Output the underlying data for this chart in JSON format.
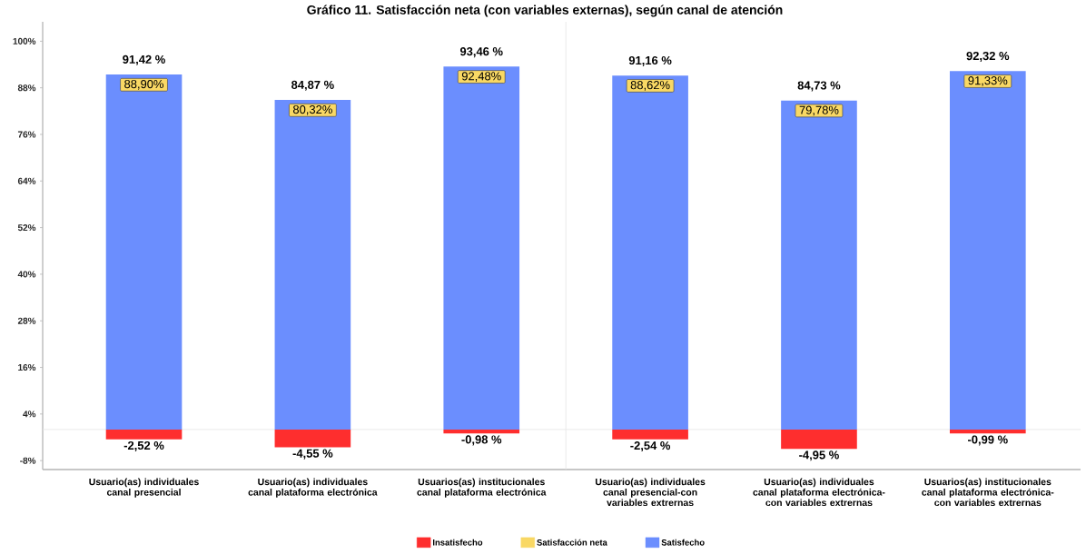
{
  "chart_data": {
    "type": "bar",
    "title": "Gráfico 11. Satisfacción neta (con variables externas), según canal de atención",
    "categories": [
      "Usuario(as) individuales canal presencial",
      "Usuario(as) individuales canal plataforma electrónica",
      "Usuarios(as) institucionales canal plataforma electrónica",
      "Usuario(as) individuales canal presencial-con variables extrernas",
      "Usuario(as) individuales canal plataforma electrónica-con variables extrernas",
      "Usuarios(as) institucionales canal plataforma electrónica-con variables extrernas"
    ],
    "series": [
      {
        "name": "Insatisfecho",
        "color": "#fe2e2e",
        "values": [
          -2.52,
          -4.55,
          -0.98,
          -2.54,
          -4.95,
          -0.99
        ],
        "value_labels": [
          "-2,52 %",
          "-4,55 %",
          "-0,98 %",
          "-2,54 %",
          "-4,95 %",
          "-0,99 %"
        ]
      },
      {
        "name": "Satisfacción neta",
        "color": "#f9d864",
        "values": [
          null,
          null,
          null,
          null,
          null,
          null
        ]
      },
      {
        "name": "Satisfecho",
        "color": "#6b8efe",
        "values": [
          91.42,
          84.87,
          93.46,
          91.16,
          84.73,
          92.32
        ],
        "value_labels": [
          "91,42 %",
          "84,87 %",
          "93,46 %",
          "91,16 %",
          "84,73 %",
          "92,32 %"
        ]
      }
    ],
    "annotations": [
      "88,90%",
      "80,32%",
      "92,48%",
      "88,62%",
      "79,78%",
      "91,33%"
    ],
    "stacked": true,
    "legend": "bottom",
    "ylim": [
      -10.3,
      105
    ],
    "yticks": [
      {
        "value": -8,
        "label": "-8%"
      },
      {
        "value": 4,
        "label": "4%"
      },
      {
        "value": 16,
        "label": "16%"
      },
      {
        "value": 28,
        "label": "28%"
      },
      {
        "value": 40,
        "label": "40%"
      },
      {
        "value": 52,
        "label": "52%"
      },
      {
        "value": 64,
        "label": "64%"
      },
      {
        "value": 76,
        "label": "76%"
      },
      {
        "value": 88,
        "label": "88%"
      },
      {
        "value": 100,
        "label": "100%"
      }
    ],
    "ref_lines": [
      {
        "axis": "y",
        "value": 0,
        "color": "#e4e4e4"
      }
    ]
  }
}
